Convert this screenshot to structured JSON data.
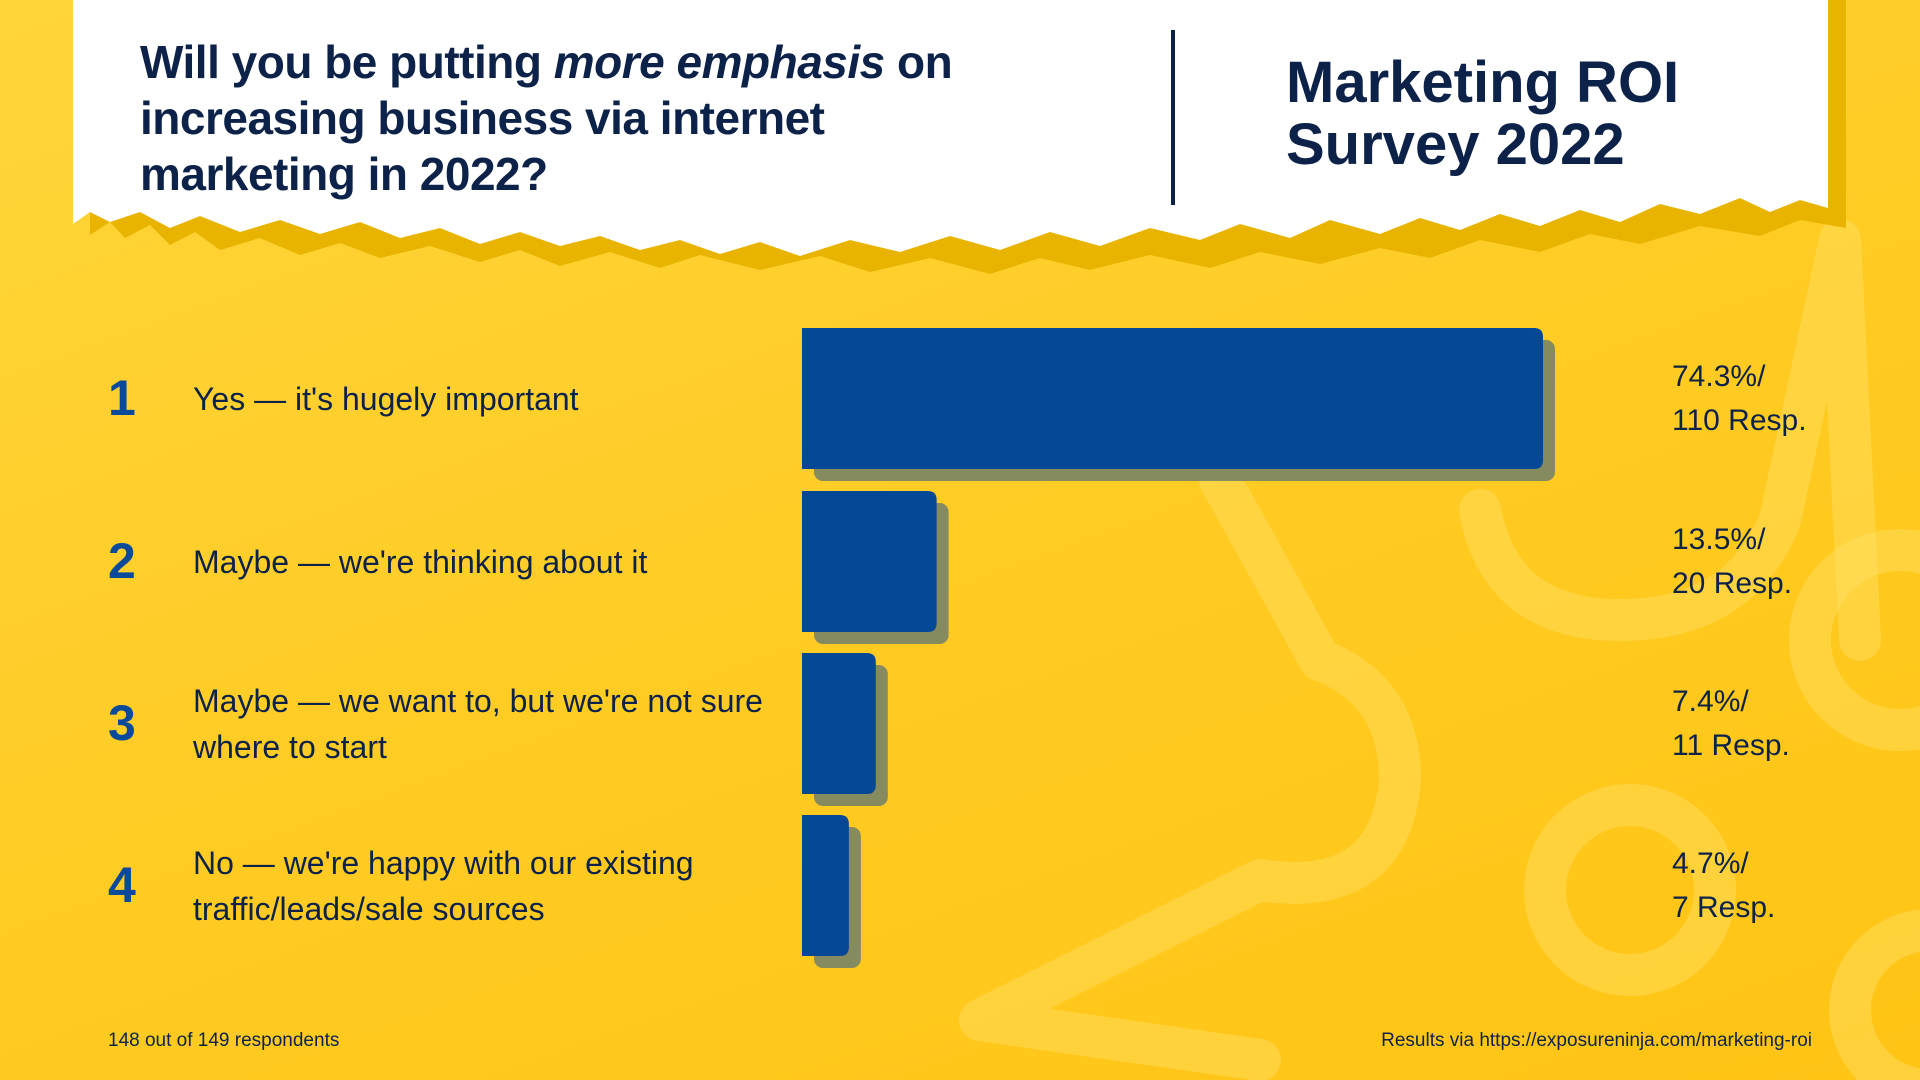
{
  "header": {
    "question_parts": [
      "Will you be putting ",
      "more emphasis",
      " on increasing business via internet marketing in 2022?"
    ],
    "brand_line1": "Marketing ROI",
    "brand_line2": "Survey 2022"
  },
  "colors": {
    "bar": "#054896",
    "bar_shadow": "#858a5f",
    "number": "#0a4a9a",
    "text": "#0c2248",
    "background": "#ffcb22"
  },
  "chart_data": {
    "type": "bar",
    "orientation": "horizontal",
    "categories": [
      "Yes — it's hugely important",
      "Maybe — we're thinking about it",
      "Maybe — we want to, but we're not sure where to start",
      "No — we're happy with our existing traffic/leads/sale sources"
    ],
    "numbers": [
      "1",
      "2",
      "3",
      "4"
    ],
    "values": [
      74.3,
      13.5,
      7.4,
      4.7
    ],
    "responses": [
      110,
      20,
      11,
      7
    ],
    "value_labels": [
      [
        "74.3%/",
        "110 Resp."
      ],
      [
        "13.5%/",
        "20 Resp."
      ],
      [
        "7.4%/",
        "11 Resp."
      ],
      [
        "4.7%/",
        "7 Resp."
      ]
    ],
    "unit": "%",
    "grid": false
  },
  "footer": {
    "left": "148 out of 149 respondents",
    "right": "Results via https://exposureninja.com/marketing-roi"
  }
}
